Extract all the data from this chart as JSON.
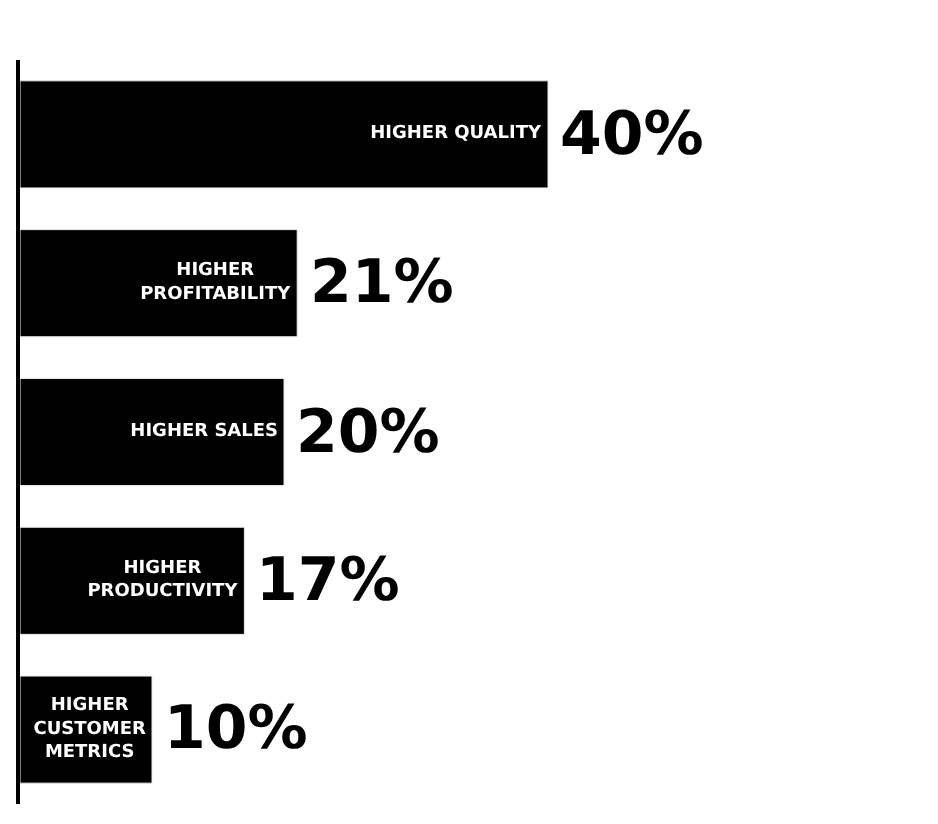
{
  "chart_data": {
    "type": "bar",
    "orientation": "horizontal",
    "categories": [
      "HIGHER QUALITY",
      "HIGHER\nPROFITABILITY",
      "HIGHER SALES",
      "HIGHER\nPRODUCTIVITY",
      "HIGHER\nCUSTOMER\nMETRICS"
    ],
    "values": [
      40,
      21,
      20,
      17,
      10
    ],
    "value_labels": [
      "40%",
      "21%",
      "20%",
      "17%",
      "10%"
    ],
    "color": "#000000",
    "tick_labels": false
  }
}
